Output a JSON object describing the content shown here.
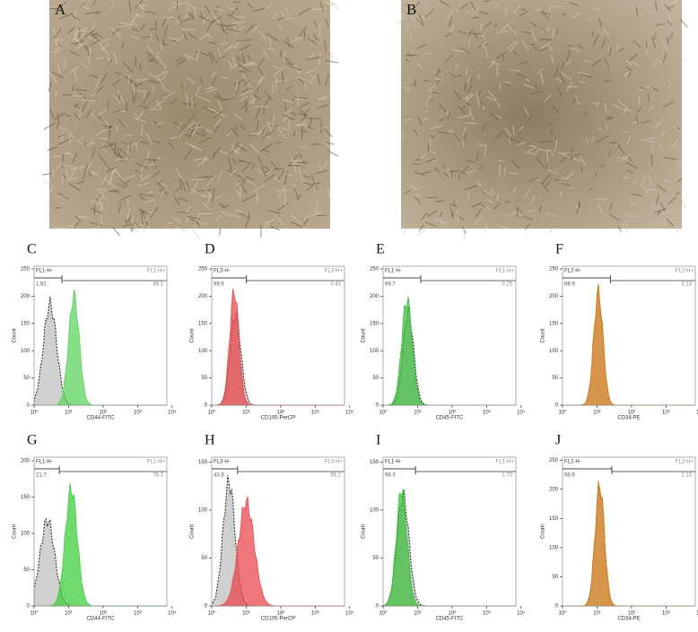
{
  "photos": [
    {
      "label": "A"
    },
    {
      "label": "B"
    }
  ],
  "histograms": [
    {
      "label": "C",
      "ylabel": "Count",
      "yticks": [
        "0",
        "50",
        "100",
        "150",
        "200",
        "250"
      ],
      "xticks": [
        "10⁰",
        "10¹",
        "10²",
        "10³",
        "10⁴"
      ],
      "xlabel": "CD44-FITC",
      "gate_left": {
        "name": "FL1-H-",
        "value": "1.92"
      },
      "gate_right": {
        "name": "FL1-H+",
        "value": "98.1"
      }
    },
    {
      "label": "D",
      "ylabel": "Count",
      "yticks": [
        "0",
        "50",
        "100",
        "150",
        "200",
        "250"
      ],
      "xticks": [
        "10⁰",
        "10¹",
        "10²",
        "10³",
        "10⁴"
      ],
      "xlabel": "CD105-PerCP",
      "gate_left": {
        "name": "FL3-H-",
        "value": "99.6"
      },
      "gate_right": {
        "name": "FL3-H+",
        "value": "0.43"
      }
    },
    {
      "label": "E",
      "ylabel": "Count",
      "yticks": [
        "0",
        "50",
        "100",
        "150",
        "200",
        "250"
      ],
      "xticks": [
        "10⁰",
        "10¹",
        "10²",
        "10³",
        "10⁴"
      ],
      "xlabel": "CD45-FITC",
      "gate_left": {
        "name": "FL1-H-",
        "value": "99.7"
      },
      "gate_right": {
        "name": "FL1-H+",
        "value": "0.25"
      }
    },
    {
      "label": "F",
      "ylabel": "Count",
      "yticks": [
        "0",
        "50",
        "100",
        "150",
        "200",
        "250"
      ],
      "xticks": [
        "10⁰",
        "10¹",
        "10²",
        "10³",
        "10⁴"
      ],
      "xlabel": "CD34-PE",
      "gate_left": {
        "name": "FL2-H-",
        "value": "98.9"
      },
      "gate_right": {
        "name": "FL2-H+",
        "value": "1.13"
      }
    },
    {
      "label": "G",
      "ylabel": "Count",
      "yticks": [
        "0",
        "50",
        "100",
        "150",
        "200"
      ],
      "xticks": [
        "10⁰",
        "10¹",
        "10²",
        "10³",
        "10⁴"
      ],
      "xlabel": "CD44-FITC",
      "gate_left": {
        "name": "FL1-H-",
        "value": "21.7"
      },
      "gate_right": {
        "name": "FL1-H+",
        "value": "76.3"
      }
    },
    {
      "label": "H",
      "ylabel": "Count",
      "yticks": [
        "0",
        "50",
        "100",
        "150"
      ],
      "xticks": [
        "10⁰",
        "10¹",
        "10²",
        "10³",
        "10⁴"
      ],
      "xlabel": "CD105-PerCP",
      "gate_left": {
        "name": "FL3-H-",
        "value": "43.8"
      },
      "gate_right": {
        "name": "FL3-H+",
        "value": "56.2"
      }
    },
    {
      "label": "I",
      "ylabel": "Count",
      "yticks": [
        "0",
        "50",
        "100",
        "150"
      ],
      "xticks": [
        "10⁰",
        "10¹",
        "10²",
        "10³",
        "10⁴"
      ],
      "xlabel": "CD45-FITC",
      "gate_left": {
        "name": "FL1-H-",
        "value": "98.3"
      },
      "gate_right": {
        "name": "FL1-H+",
        "value": "1.70"
      }
    },
    {
      "label": "J",
      "ylabel": "Count",
      "yticks": [
        "0",
        "50",
        "100",
        "150",
        "200",
        "250"
      ],
      "xticks": [
        "10⁰",
        "10¹",
        "10²",
        "10³",
        "10⁴"
      ],
      "xlabel": "CD34-PE",
      "gate_left": {
        "name": "FL2-H-",
        "value": "98.9"
      },
      "gate_right": {
        "name": "FL2-H+",
        "value": "1.13"
      }
    }
  ]
}
